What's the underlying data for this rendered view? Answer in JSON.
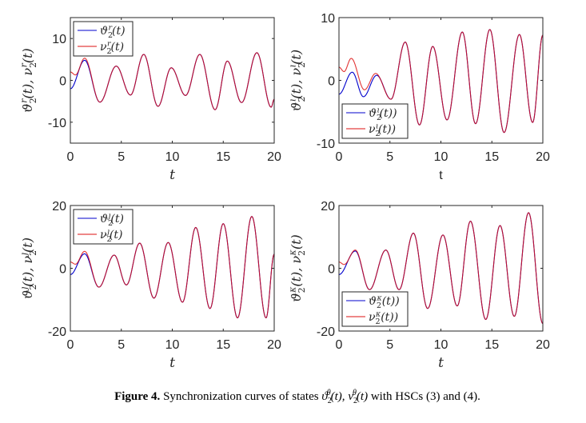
{
  "caption": {
    "label": "Figure 4.",
    "text_before": " Synchronization curves of states ",
    "math1": {
      "sym": "ϑ",
      "sup": "θ",
      "sub": "2",
      "arg": "(t), "
    },
    "math2": {
      "sym": "ν",
      "sup": "θ",
      "sub": "2",
      "arg": "(t)"
    },
    "text_after": " with HSCs (3) and (4)."
  },
  "chart_data": [
    {
      "type": "line",
      "xlabel": "t",
      "xlabel_italic": true,
      "ylabel": {
        "parts": [
          {
            "sym": "ϑ",
            "sup": "r",
            "sub": "2",
            "arg": "(t), "
          },
          {
            "sym": "ν",
            "sup": "r",
            "sub": "2",
            "arg": "(t)"
          }
        ]
      },
      "xlim": [
        0,
        20
      ],
      "ylim": [
        -15,
        15
      ],
      "xticks": [
        0,
        5,
        10,
        15,
        20
      ],
      "yticks": [
        -10,
        0,
        10
      ],
      "legend_placement": "top-left",
      "series": [
        {
          "name": "theta",
          "legend": {
            "sym": "ϑ",
            "sup": "r",
            "sub": "2",
            "arg": "(t)"
          },
          "color": "#0000cc",
          "extrema": [
            [
              0,
              -2
            ],
            [
              1.4,
              4.8
            ],
            [
              2.9,
              -5.2
            ],
            [
              4.5,
              3.4
            ],
            [
              5.9,
              -3.5
            ],
            [
              7.2,
              6.2
            ],
            [
              8.6,
              -6.2
            ],
            [
              9.9,
              3
            ],
            [
              11.3,
              -3.6
            ],
            [
              12.7,
              6.2
            ],
            [
              14.2,
              -7
            ],
            [
              15.4,
              4.6
            ],
            [
              16.8,
              -5.3
            ],
            [
              18.3,
              6.6
            ],
            [
              19.7,
              -6.4
            ],
            [
              20,
              -4.5
            ]
          ]
        },
        {
          "name": "nu",
          "legend": {
            "sym": "ν",
            "sup": "r",
            "sub": "2",
            "arg": "(t)"
          },
          "color": "#dd1111",
          "extrema": [
            [
              0,
              2
            ],
            [
              0.5,
              1.3
            ],
            [
              1.4,
              5.3
            ],
            [
              2.9,
              -5.2
            ],
            [
              4.5,
              3.4
            ],
            [
              5.9,
              -3.5
            ],
            [
              7.2,
              6.2
            ],
            [
              8.6,
              -6.2
            ],
            [
              9.9,
              3
            ],
            [
              11.3,
              -3.6
            ],
            [
              12.7,
              6.2
            ],
            [
              14.2,
              -7
            ],
            [
              15.4,
              4.6
            ],
            [
              16.8,
              -5.3
            ],
            [
              18.3,
              6.6
            ],
            [
              19.7,
              -6.4
            ],
            [
              20,
              -4.5
            ]
          ]
        }
      ]
    },
    {
      "type": "line",
      "xlabel": "t",
      "xlabel_italic": false,
      "ylabel": {
        "parts": [
          {
            "sym": "ϑ",
            "sup": "ı",
            "sub": "2",
            "arg": "(t), "
          },
          {
            "sym": "ν",
            "sup": "ı",
            "sub": "2",
            "arg": "(t)"
          }
        ]
      },
      "xlim": [
        0,
        20
      ],
      "ylim": [
        -10,
        10
      ],
      "xticks": [
        0,
        5,
        10,
        15,
        20
      ],
      "yticks": [
        -10,
        0,
        10
      ],
      "legend_placement": "bottom-left",
      "series": [
        {
          "name": "theta",
          "legend": {
            "sym": "ϑ",
            "sup": "ı",
            "sub": "2",
            "arg": "(t))"
          },
          "color": "#0000cc",
          "extrema": [
            [
              0,
              -2.2
            ],
            [
              1.3,
              1.3
            ],
            [
              2.4,
              -2.6
            ],
            [
              3.7,
              0.8
            ],
            [
              5.1,
              -3
            ],
            [
              6.5,
              6.1
            ],
            [
              7.9,
              -7.1
            ],
            [
              9.2,
              5.4
            ],
            [
              10.6,
              -6.3
            ],
            [
              12.1,
              7.7
            ],
            [
              13.4,
              -6.9
            ],
            [
              14.8,
              8.1
            ],
            [
              16.2,
              -8.3
            ],
            [
              17.7,
              7.3
            ],
            [
              19.0,
              -6.7
            ],
            [
              20,
              7.2
            ]
          ]
        },
        {
          "name": "nu",
          "legend": {
            "sym": "ν",
            "sup": "ı",
            "sub": "2",
            "arg": "(t))"
          },
          "color": "#dd1111",
          "extrema": [
            [
              0,
              2.1
            ],
            [
              0.5,
              1.4
            ],
            [
              1.2,
              3.5
            ],
            [
              2.5,
              -1.5
            ],
            [
              3.6,
              1.1
            ],
            [
              5.1,
              -3
            ],
            [
              6.5,
              6.1
            ],
            [
              7.9,
              -7.1
            ],
            [
              9.2,
              5.4
            ],
            [
              10.6,
              -6.3
            ],
            [
              12.1,
              7.7
            ],
            [
              13.4,
              -6.9
            ],
            [
              14.8,
              8.1
            ],
            [
              16.2,
              -8.3
            ],
            [
              17.7,
              7.3
            ],
            [
              19.0,
              -6.7
            ],
            [
              20,
              7.2
            ]
          ]
        }
      ]
    },
    {
      "type": "line",
      "xlabel": "t",
      "xlabel_italic": true,
      "ylabel": {
        "parts": [
          {
            "sym": "ϑ",
            "sup": "ȷ",
            "sub": "2",
            "arg": "(t), "
          },
          {
            "sym": "ν",
            "sup": "ȷ",
            "sub": "2",
            "arg": "(t)"
          }
        ]
      },
      "xlim": [
        0,
        20
      ],
      "ylim": [
        -20,
        20
      ],
      "xticks": [
        0,
        5,
        10,
        15,
        20
      ],
      "yticks": [
        -20,
        0,
        20
      ],
      "legend_placement": "top-left",
      "series": [
        {
          "name": "theta",
          "legend": {
            "sym": "ϑ",
            "sup": "ȷ",
            "sub": "2",
            "arg": "(t)"
          },
          "color": "#0000cc",
          "extrema": [
            [
              0,
              -2
            ],
            [
              1.4,
              4.6
            ],
            [
              2.8,
              -6
            ],
            [
              4.3,
              4.2
            ],
            [
              5.5,
              -5.3
            ],
            [
              6.8,
              8
            ],
            [
              8.2,
              -9.5
            ],
            [
              9.6,
              8.2
            ],
            [
              11.0,
              -10.8
            ],
            [
              12.3,
              13
            ],
            [
              13.7,
              -12.8
            ],
            [
              15.0,
              14.2
            ],
            [
              16.4,
              -15.8
            ],
            [
              17.8,
              16.5
            ],
            [
              19.2,
              -15.8
            ],
            [
              20,
              4.5
            ]
          ]
        },
        {
          "name": "nu",
          "legend": {
            "sym": "ν",
            "sup": "ȷ",
            "sub": "2",
            "arg": "(t)"
          },
          "color": "#dd1111",
          "extrema": [
            [
              0,
              2
            ],
            [
              0.5,
              1.3
            ],
            [
              1.4,
              5.4
            ],
            [
              2.8,
              -6
            ],
            [
              4.3,
              4.2
            ],
            [
              5.5,
              -5.3
            ],
            [
              6.8,
              8
            ],
            [
              8.2,
              -9.5
            ],
            [
              9.6,
              8.2
            ],
            [
              11.0,
              -10.8
            ],
            [
              12.3,
              13
            ],
            [
              13.7,
              -12.8
            ],
            [
              15.0,
              14.2
            ],
            [
              16.4,
              -15.8
            ],
            [
              17.8,
              16.5
            ],
            [
              19.2,
              -15.8
            ],
            [
              20,
              4.5
            ]
          ]
        }
      ]
    },
    {
      "type": "line",
      "xlabel": "t",
      "xlabel_italic": true,
      "ylabel": {
        "parts": [
          {
            "sym": "ϑ",
            "sup": "κ",
            "sub": "2",
            "arg": "(t), "
          },
          {
            "sym": "ν",
            "sup": "κ",
            "sub": "2",
            "arg": "(t)"
          }
        ]
      },
      "xlim": [
        0,
        20
      ],
      "ylim": [
        -20,
        20
      ],
      "xticks": [
        0,
        5,
        10,
        15,
        20
      ],
      "yticks": [
        -20,
        0,
        20
      ],
      "legend_placement": "bottom-left",
      "series": [
        {
          "name": "theta",
          "legend": {
            "sym": "ϑ",
            "sup": "κ",
            "sub": "2",
            "arg": "(t))"
          },
          "color": "#0000cc",
          "extrema": [
            [
              0,
              -2
            ],
            [
              1.6,
              5.5
            ],
            [
              3.0,
              -6.8
            ],
            [
              4.6,
              5.8
            ],
            [
              5.9,
              -6.8
            ],
            [
              7.3,
              11.2
            ],
            [
              8.7,
              -12.8
            ],
            [
              10.2,
              10.6
            ],
            [
              11.6,
              -12
            ],
            [
              12.9,
              15
            ],
            [
              14.4,
              -16.3
            ],
            [
              15.8,
              13.6
            ],
            [
              17.2,
              -15.3
            ],
            [
              18.6,
              17.7
            ],
            [
              20,
              -17.6
            ]
          ]
        },
        {
          "name": "nu",
          "legend": {
            "sym": "ν",
            "sup": "κ",
            "sub": "2",
            "arg": "(t))"
          },
          "color": "#dd1111",
          "extrema": [
            [
              0,
              2
            ],
            [
              0.5,
              1.2
            ],
            [
              1.6,
              5.8
            ],
            [
              3.0,
              -6.8
            ],
            [
              4.6,
              5.8
            ],
            [
              5.9,
              -6.8
            ],
            [
              7.3,
              11.2
            ],
            [
              8.7,
              -12.8
            ],
            [
              10.2,
              10.6
            ],
            [
              11.6,
              -12
            ],
            [
              12.9,
              15
            ],
            [
              14.4,
              -16.3
            ],
            [
              15.8,
              13.6
            ],
            [
              17.2,
              -15.3
            ],
            [
              18.6,
              17.7
            ],
            [
              20,
              -17.6
            ]
          ]
        }
      ]
    }
  ]
}
